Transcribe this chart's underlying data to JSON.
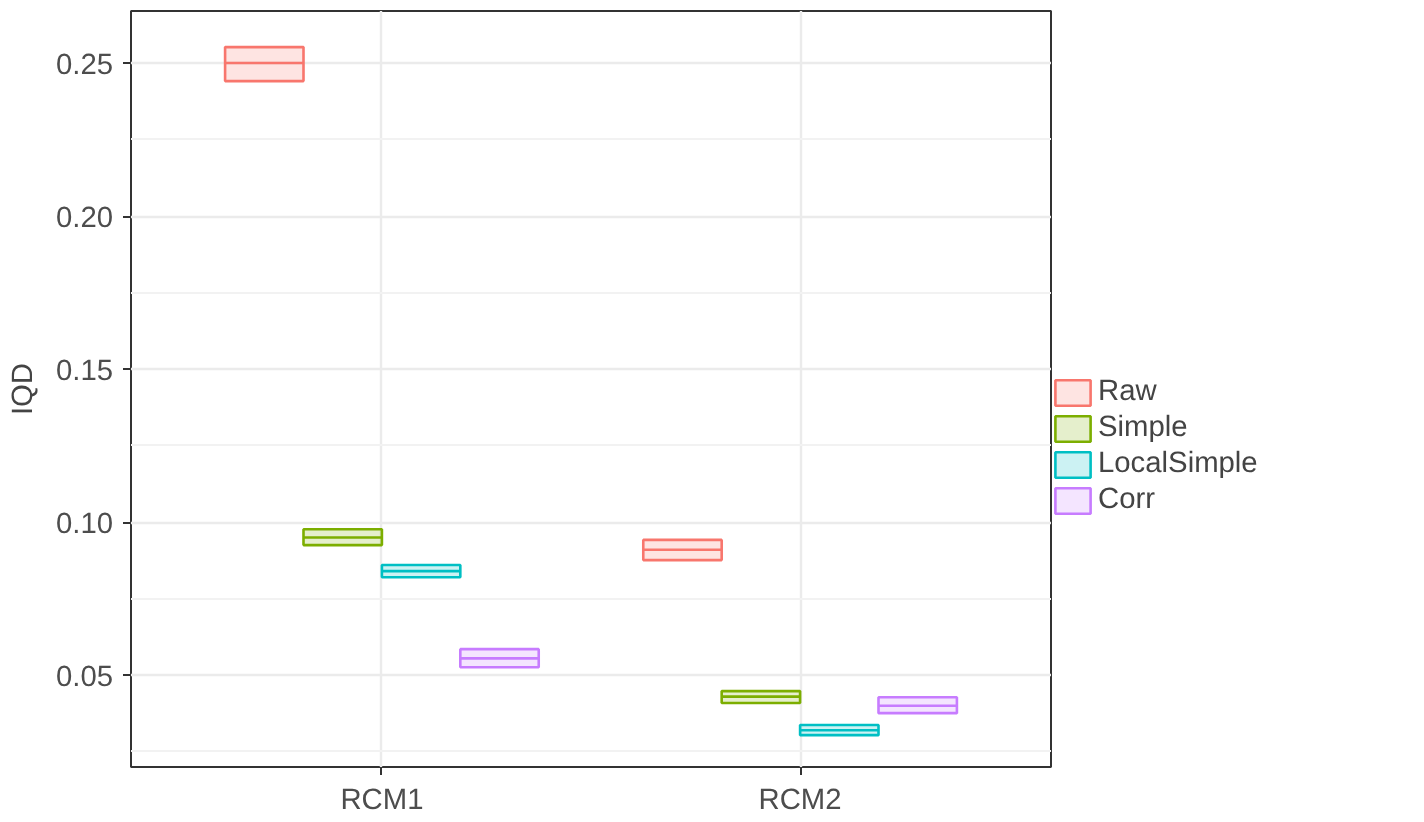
{
  "chart_data": {
    "type": "box",
    "ylabel": "IQD",
    "categories": [
      "RCM1",
      "RCM2"
    ],
    "ylim": [
      0.02,
      0.267
    ],
    "yticks": [
      {
        "value": 0.05,
        "label": "0.05"
      },
      {
        "value": 0.1,
        "label": "0.10"
      },
      {
        "value": 0.15,
        "label": "0.15"
      },
      {
        "value": 0.2,
        "label": "0.20"
      },
      {
        "value": 0.25,
        "label": "0.25"
      }
    ],
    "grid": true,
    "legend": "right",
    "series": [
      {
        "name": "Raw",
        "color": "#f8766d",
        "boxes": [
          {
            "low": 0.2441,
            "q1": 0.2441,
            "median": 0.25,
            "q3": 0.2552,
            "high": 0.2552
          },
          {
            "low": 0.0876,
            "q1": 0.0876,
            "median": 0.091,
            "q3": 0.0942,
            "high": 0.0942
          }
        ]
      },
      {
        "name": "Simple",
        "color": "#7cae00",
        "boxes": [
          {
            "low": 0.0925,
            "q1": 0.0925,
            "median": 0.095,
            "q3": 0.0977,
            "high": 0.0977
          },
          {
            "low": 0.0409,
            "q1": 0.0409,
            "median": 0.043,
            "q3": 0.0448,
            "high": 0.0448
          }
        ]
      },
      {
        "name": "LocalSimple",
        "color": "#00bfc4",
        "boxes": [
          {
            "low": 0.082,
            "q1": 0.082,
            "median": 0.084,
            "q3": 0.086,
            "high": 0.086
          },
          {
            "low": 0.0304,
            "q1": 0.0304,
            "median": 0.032,
            "q3": 0.0337,
            "high": 0.0337
          }
        ]
      },
      {
        "name": "Corr",
        "color": "#c77cff",
        "boxes": [
          {
            "low": 0.0526,
            "q1": 0.0526,
            "median": 0.0555,
            "q3": 0.0585,
            "high": 0.0585
          },
          {
            "low": 0.0376,
            "q1": 0.0376,
            "median": 0.04,
            "q3": 0.0428,
            "high": 0.0428
          }
        ]
      }
    ]
  }
}
